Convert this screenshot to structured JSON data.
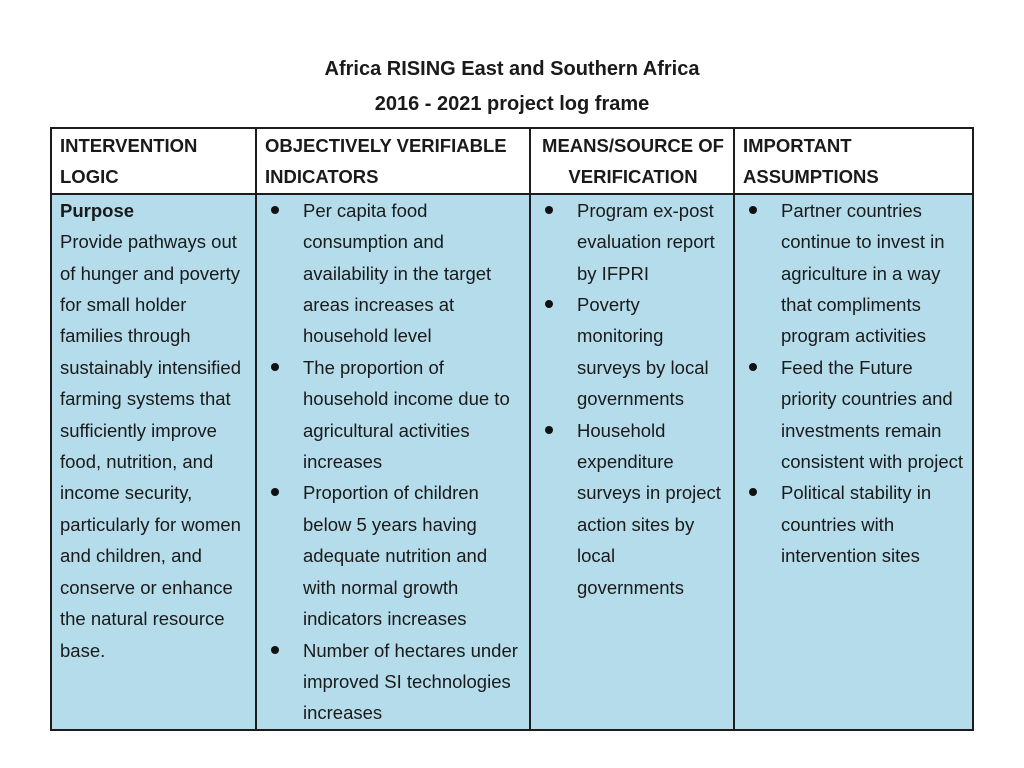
{
  "title": {
    "line1": "Africa RISING East and Southern Africa",
    "line2": "2016 - 2021 project log frame"
  },
  "table": {
    "headers": [
      "INTERVENTION LOGIC",
      "OBJECTIVELY VERIFIABLE INDICATORS",
      "MEANS/SOURCE OF VERIFICATION",
      "IMPORTANT ASSUMPTIONS"
    ],
    "purpose": {
      "label": "Purpose",
      "text": "Provide pathways out of hunger and poverty for small holder families through sustainably intensified farming systems that sufficiently improve food, nutrition, and income security, particularly for women and children, and conserve or enhance the natural resource base."
    },
    "indicators": [
      "Per capita food consumption and availability in the target areas increases at household level",
      "The proportion of household income due to agricultural activities increases",
      "Proportion of children below 5 years having adequate nutrition and with normal growth indicators increases",
      "Number of hectares under improved SI technologies increases"
    ],
    "verification": [
      "Program ex-post evaluation report by IFPRI",
      "Poverty monitoring surveys  by local governments",
      "Household expenditure surveys in project action sites by local governments"
    ],
    "assumptions": [
      "Partner countries continue to invest in agriculture in a way that compliments program activities",
      "Feed the Future priority countries and investments remain consistent with project",
      "Political stability in countries with intervention sites"
    ]
  }
}
